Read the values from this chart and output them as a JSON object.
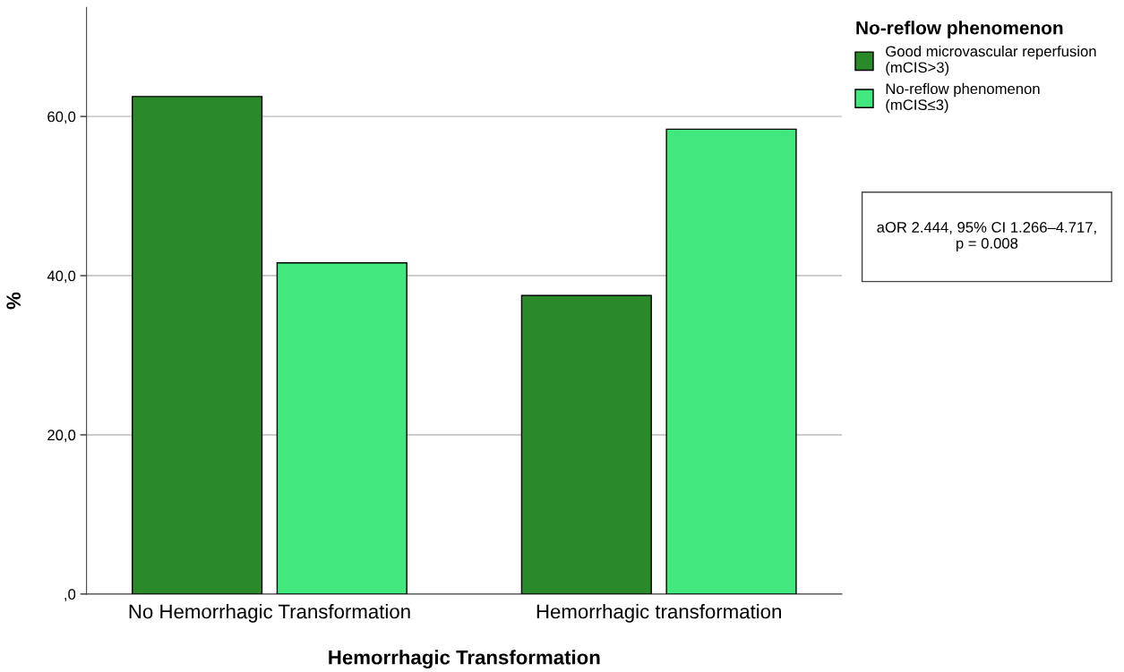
{
  "chart_data": {
    "type": "bar",
    "xlabel": "Hemorrhagic Transformation",
    "ylabel": "%",
    "categories": [
      "No Hemorrhagic Transformation",
      "Hemorrhagic transformation"
    ],
    "series": [
      {
        "name": "Good microvascular reperfusion\n(mCIS>3)",
        "color": "#2a8a2a",
        "values": [
          62.5,
          37.5
        ]
      },
      {
        "name": "No-reflow phenomenon\n(mCIS≤3)",
        "color": "#42e87d",
        "values": [
          41.6,
          58.4
        ]
      }
    ],
    "legend_title": "No-reflow phenomenon",
    "legend": "top right",
    "ylim": [
      0,
      73.7
    ],
    "yticks": [
      {
        "value": 0,
        "label": ",0"
      },
      {
        "value": 20,
        "label": "20,0"
      },
      {
        "value": 40,
        "label": "40,0"
      },
      {
        "value": 60,
        "label": "60,0"
      }
    ],
    "grid": "y",
    "annotations": [
      "aOR 2.444, 95% CI 1.266–4.717,\np = 0.008"
    ]
  }
}
